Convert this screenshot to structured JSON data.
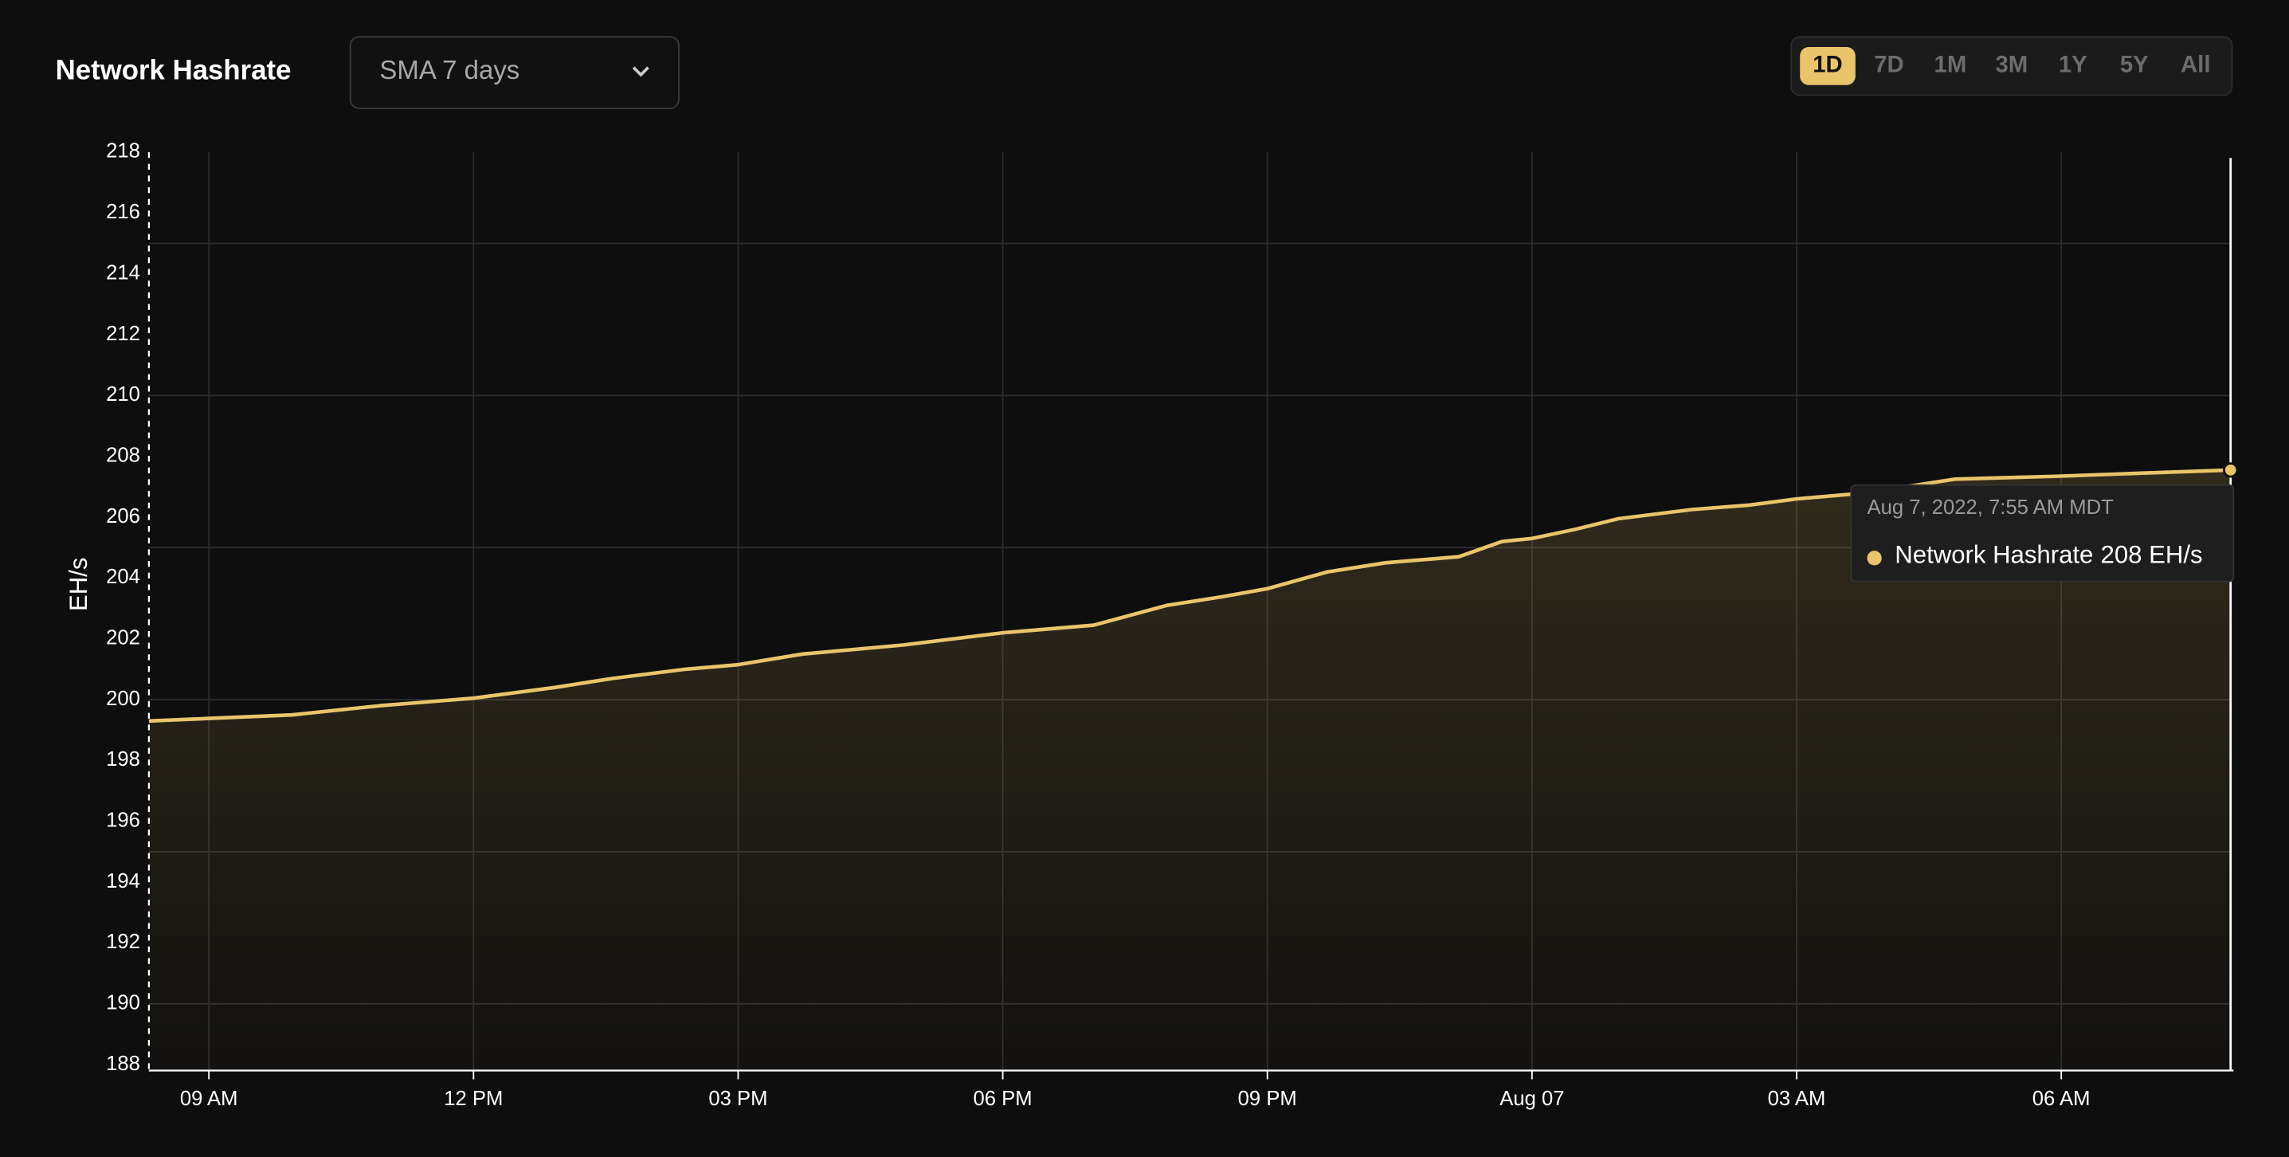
{
  "chart_data": {
    "type": "area",
    "title": "Network Hashrate",
    "dropdown": "SMA 7 days",
    "ranges": [
      "1D",
      "7D",
      "1M",
      "3M",
      "1Y",
      "5Y",
      "All"
    ],
    "active_range": "1D",
    "y_label": "EH/s",
    "x": [
      8.32,
      9.94,
      10.93,
      12,
      12.92,
      13.58,
      14.4,
      15,
      15.73,
      16.88,
      18,
      19.03,
      19.86,
      20.52,
      21,
      21.68,
      22.34,
      23.17,
      23.66,
      24,
      24.49,
      24.98,
      25.81,
      26.47,
      27,
      27.79,
      28.79,
      30,
      30.93,
      31.92
    ],
    "series": [
      {
        "name": "Network Hashrate",
        "color": "#e9c46a",
        "values": [
          199.3,
          199.5,
          199.8,
          200.05,
          200.4,
          200.7,
          201.0,
          201.15,
          201.5,
          201.8,
          202.2,
          202.45,
          203.1,
          203.4,
          203.65,
          204.2,
          204.5,
          204.7,
          205.2,
          205.3,
          205.6,
          205.95,
          206.25,
          206.4,
          206.6,
          206.8,
          207.25,
          207.35,
          207.45,
          207.55
        ]
      }
    ],
    "xlim": [
      8.32,
      31.92
    ],
    "xticks": [
      {
        "value": 9,
        "label": "09 AM"
      },
      {
        "value": 12,
        "label": "12 PM"
      },
      {
        "value": 15,
        "label": "03 PM"
      },
      {
        "value": 18,
        "label": "06 PM"
      },
      {
        "value": 21,
        "label": "09 PM"
      },
      {
        "value": 24,
        "label": "Aug 07"
      },
      {
        "value": 27,
        "label": "03 AM"
      },
      {
        "value": 30,
        "label": "06 AM"
      }
    ],
    "ylim": [
      188,
      218
    ],
    "yticks": [
      188,
      190,
      192,
      194,
      196,
      198,
      200,
      202,
      204,
      206,
      208,
      210,
      212,
      214,
      216,
      218
    ],
    "ygrid": [
      190,
      195,
      200,
      205,
      210,
      215
    ],
    "tooltip": {
      "title": "Aug 7, 2022, 7:55 AM MDT",
      "value": "208 EH/s"
    }
  }
}
